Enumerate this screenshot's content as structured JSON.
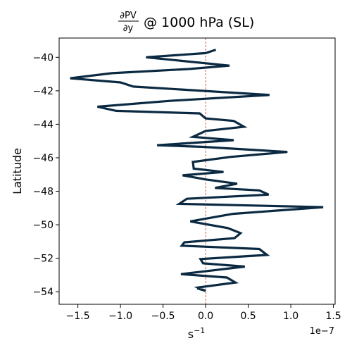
{
  "chart_data": {
    "type": "line",
    "title": {
      "numerator": "∂PV",
      "denominator": "∂y",
      "suffix": "@ 1000 hPa (SL)"
    },
    "xlabel": {
      "base": "s",
      "exponent": "−1"
    },
    "ylabel": "Latitude",
    "x_offset_text": "1e−7",
    "x_scale": 1e-07,
    "xlim": [
      -1.72e-07,
      1.52e-07
    ],
    "ylim": [
      -54.75,
      -38.85
    ],
    "x_ticks": [
      -1.5e-07,
      -1e-07,
      -5e-08,
      0,
      5e-08,
      1e-07,
      1.5e-07
    ],
    "x_tick_labels": [
      "−1.5",
      "−1.0",
      "−0.5",
      "0.0",
      "0.5",
      "1.0",
      "1.5"
    ],
    "y_ticks": [
      -54,
      -52,
      -50,
      -48,
      -46,
      -44,
      -42,
      -40
    ],
    "y_tick_labels": [
      "−54",
      "−52",
      "−50",
      "−48",
      "−46",
      "−44",
      "−42",
      "−40"
    ],
    "zero_line": {
      "x": 0,
      "color": "#c0392b",
      "style": "dashed"
    },
    "series": [
      {
        "color": "#0b2a42",
        "x": [
          1.2e-08,
          0.0,
          -7e-08,
          2.8e-08,
          -2e-08,
          -1.1e-07,
          -1.59e-07,
          -1e-07,
          -8.5e-08,
          7.5e-08,
          -4.2e-08,
          -1.27e-07,
          -1.05e-07,
          -7e-09,
          0.0,
          3.3e-08,
          4.5e-08,
          0.0,
          -1.5e-08,
          3.3e-08,
          -5.7e-08,
          -3e-09,
          9.6e-08,
          2.9e-08,
          -1.5e-08,
          -1.4e-08,
          2.1e-08,
          -2.7e-08,
          1e-09,
          3.7e-08,
          1.1e-08,
          6.3e-08,
          7.4e-08,
          -2.2e-08,
          -3.1e-08,
          1.38e-07,
          3.2e-08,
          -1.8e-08,
          2.6e-08,
          4.1e-08,
          3.4e-08,
          -2.5e-08,
          -2.8e-08,
          6.3e-08,
          7.2e-08,
          -6e-09,
          -3e-09,
          4.6e-08,
          -2.9e-08,
          2.5e-08,
          3.5e-08,
          -9e-09,
          0.0,
          -1e-08
        ],
        "y": [
          -39.55,
          -39.75,
          -40.0,
          -40.5,
          -40.7,
          -40.95,
          -41.25,
          -41.5,
          -41.75,
          -42.25,
          -42.6,
          -42.95,
          -43.2,
          -43.35,
          -43.65,
          -43.8,
          -44.15,
          -44.4,
          -44.75,
          -44.95,
          -45.25,
          -45.35,
          -45.65,
          -45.95,
          -46.25,
          -46.65,
          -46.85,
          -47.05,
          -47.3,
          -47.55,
          -47.8,
          -47.95,
          -48.2,
          -48.45,
          -48.75,
          -48.95,
          -49.35,
          -49.8,
          -50.2,
          -50.5,
          -50.8,
          -51.05,
          -51.25,
          -51.45,
          -51.8,
          -52.05,
          -52.3,
          -52.5,
          -52.95,
          -53.15,
          -53.45,
          -53.75,
          -53.95,
          -53.8
        ]
      }
    ]
  }
}
